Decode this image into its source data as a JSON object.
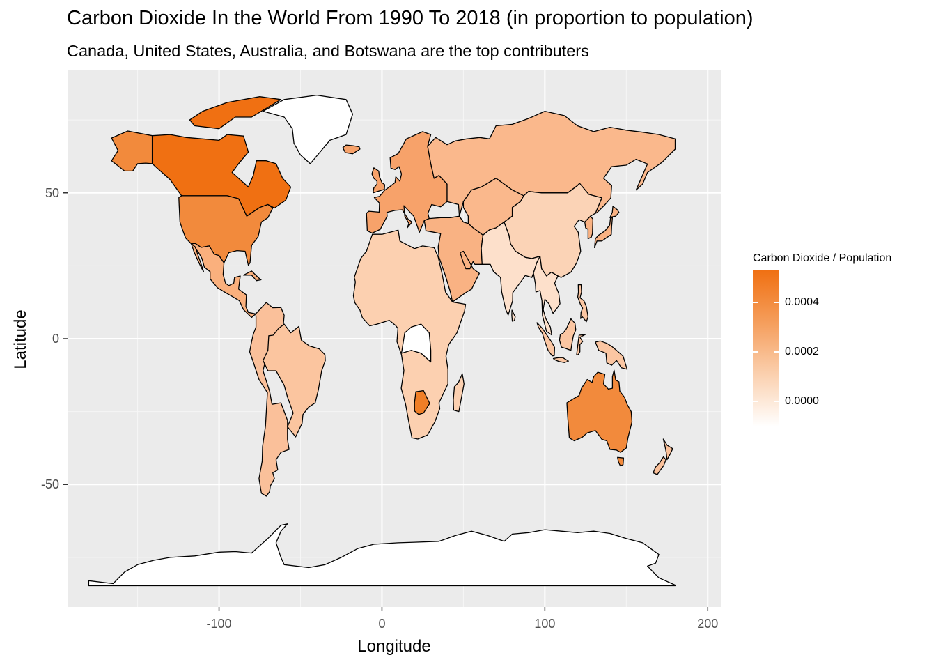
{
  "chart": {
    "title": "Carbon Dioxide In the World From 1990 To 2018 (in proportion to population)",
    "subtitle": "Canada, United States, Australia, and Botswana are the top contributers",
    "xlabel": "Longitude",
    "ylabel": "Latitude"
  },
  "chart_data": {
    "type": "choropleth",
    "title": "Carbon Dioxide In the World From 1990 To 2018 (in proportion to population)",
    "subtitle": "Canada, United States, Australia, and Botswana are the top contributers",
    "xlabel": "Longitude",
    "ylabel": "Latitude",
    "xlim": [
      -193,
      208
    ],
    "ylim": [
      -92,
      92
    ],
    "x_ticks": [
      -100,
      0,
      100,
      200
    ],
    "y_ticks": [
      -50,
      0,
      50
    ],
    "x_tick_labels": [
      "-100",
      "0",
      "100",
      "200"
    ],
    "y_tick_labels": [
      "-50",
      "0",
      "50"
    ],
    "grid": true,
    "panel_background": "#ebebeb",
    "legend": {
      "title": "Carbon Dioxide / Population",
      "position": "right",
      "breaks": [
        0.0004,
        0.0002,
        0.0
      ],
      "labels": [
        "0.0004",
        "0.0002",
        "0.0000"
      ],
      "low_color": "#ffffff",
      "high_color": "#f07012",
      "range": [
        -0.0001,
        0.00053
      ]
    },
    "highlighted_regions": [
      {
        "name": "Canada",
        "value": 0.00053,
        "color": "#f07012"
      },
      {
        "name": "United States",
        "value": 0.00044,
        "color": "#f28a3c"
      },
      {
        "name": "Australia",
        "value": 0.00044,
        "color": "#f28a3c"
      },
      {
        "name": "Botswana",
        "value": 0.00048,
        "color": "#f07e26"
      }
    ],
    "region_colors": {
      "russia": "#fab88c",
      "china": "#fbd3b6",
      "india": "#fde0cb",
      "brazil": "#fbc59f",
      "south_america_other": "#fac09a",
      "europe": "#f7a26a",
      "africa": "#fcd0b0",
      "middle_east": "#f9b283",
      "mexico": "#fab07d",
      "indonesia": "#fbc6a2",
      "greenland": "#ffffff",
      "antarctica": "#ffffff",
      "central_africa_white": "#ffffff"
    }
  }
}
